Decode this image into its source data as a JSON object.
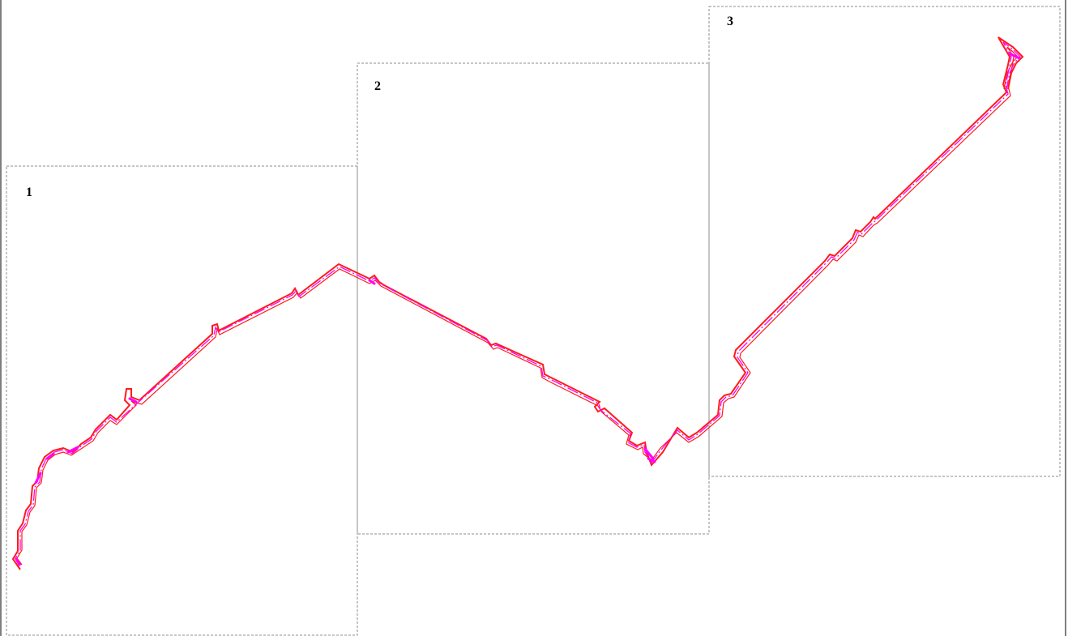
{
  "colors": {
    "route_outline": "#ff1a1a",
    "route_center": "#ff00ff",
    "sheet_border": "#8c8c8c",
    "frame": "#7f7f7f",
    "label": "#000000"
  },
  "sheets": [
    {
      "label": "1"
    },
    {
      "label": "2"
    },
    {
      "label": "3"
    }
  ]
}
